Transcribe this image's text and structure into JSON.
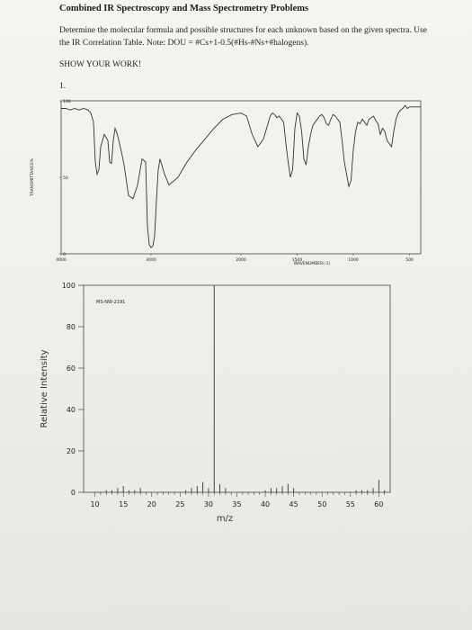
{
  "document": {
    "title": "Combined IR Spectroscopy and Mass Spectrometry Problems",
    "instructions": "Determine the molecular formula and possible structures for each unknown based on the given spectra.  Use the IR Correlation Table.  Note: DOU = #Cs+1-0.5(#Hs-#Ns+#halogens).",
    "show_work": "SHOW YOUR WORK!",
    "problem_number": "1."
  },
  "chart_data": [
    {
      "type": "line",
      "title": "",
      "xlabel": "WAVENUMBER(-1)",
      "ylabel": "TRANSMITTANCE%",
      "xlim": [
        4000,
        400
      ],
      "ylim": [
        0,
        100
      ],
      "x_ticks": [
        "4000",
        "3000",
        "2000",
        "1500",
        "1000",
        "500"
      ],
      "y_ticks": [
        "0",
        "50",
        "100"
      ],
      "series": [
        {
          "x": [
            4000,
            3950,
            3900,
            3850,
            3800,
            3750,
            3700,
            3670,
            3640,
            3620,
            3600,
            3580,
            3560,
            3520,
            3480,
            3460,
            3440,
            3420,
            3400,
            3380,
            3350,
            3320,
            3300,
            3280,
            3250,
            3200,
            3150,
            3100,
            3060,
            3040,
            3020,
            3000,
            2980,
            2960,
            2940,
            2920,
            2900,
            2880,
            2850,
            2800,
            2700,
            2600,
            2500,
            2400,
            2300,
            2200,
            2100,
            2000,
            1950,
            1900,
            1850,
            1800,
            1760,
            1740,
            1720,
            1700,
            1680,
            1660,
            1640,
            1620,
            1600,
            1580,
            1560,
            1540,
            1520,
            1500,
            1480,
            1460,
            1440,
            1420,
            1400,
            1380,
            1360,
            1340,
            1320,
            1300,
            1280,
            1260,
            1240,
            1220,
            1200,
            1180,
            1160,
            1140,
            1120,
            1100,
            1080,
            1060,
            1040,
            1020,
            1000,
            980,
            960,
            940,
            920,
            900,
            880,
            860,
            840,
            820,
            800,
            780,
            760,
            740,
            720,
            700,
            680,
            660,
            640,
            620,
            600,
            580,
            560,
            540,
            520,
            500,
            480,
            460,
            440,
            420,
            400
          ],
          "y": [
            95,
            95,
            94,
            95,
            94,
            95,
            94,
            92,
            86,
            60,
            52,
            55,
            70,
            78,
            74,
            60,
            59,
            74,
            82,
            79,
            72,
            64,
            58,
            50,
            38,
            36,
            45,
            62,
            60,
            18,
            6,
            4,
            5,
            12,
            35,
            55,
            62,
            58,
            52,
            45,
            50,
            60,
            68,
            75,
            82,
            88,
            91,
            92,
            90,
            78,
            70,
            75,
            85,
            90,
            92,
            91,
            89,
            90,
            88,
            86,
            72,
            60,
            50,
            55,
            82,
            92,
            90,
            80,
            62,
            58,
            70,
            78,
            84,
            86,
            88,
            90,
            91,
            89,
            85,
            84,
            88,
            91,
            90,
            88,
            86,
            74,
            60,
            52,
            44,
            48,
            68,
            80,
            86,
            85,
            88,
            86,
            84,
            88,
            89,
            90,
            87,
            85,
            78,
            82,
            80,
            74,
            72,
            70,
            80,
            88,
            92,
            94,
            95,
            97,
            95,
            96,
            96,
            96,
            96,
            96,
            96
          ]
        }
      ]
    },
    {
      "type": "bar",
      "title": "",
      "annotation": "MS-NW-2191",
      "xlabel": "m/z",
      "ylabel": "Relative Intensity",
      "xlim": [
        8,
        62
      ],
      "ylim": [
        0,
        100
      ],
      "x_ticks": [
        "10",
        "15",
        "20",
        "25",
        "30",
        "35",
        "40",
        "45",
        "50",
        "55",
        "60"
      ],
      "y_ticks": [
        "0",
        "20",
        "40",
        "60",
        "80",
        "100"
      ],
      "x": [
        12,
        13,
        14,
        15,
        16,
        17,
        18,
        26,
        27,
        28,
        29,
        30,
        31,
        32,
        33,
        40,
        41,
        42,
        43,
        44,
        45,
        56,
        57,
        58,
        59,
        60,
        61
      ],
      "values": [
        1,
        1,
        2,
        3,
        1,
        1,
        2,
        1,
        2,
        3,
        5,
        2,
        100,
        4,
        2,
        1,
        2,
        2,
        3,
        4,
        2,
        1,
        1,
        1,
        2,
        6,
        1
      ]
    }
  ]
}
